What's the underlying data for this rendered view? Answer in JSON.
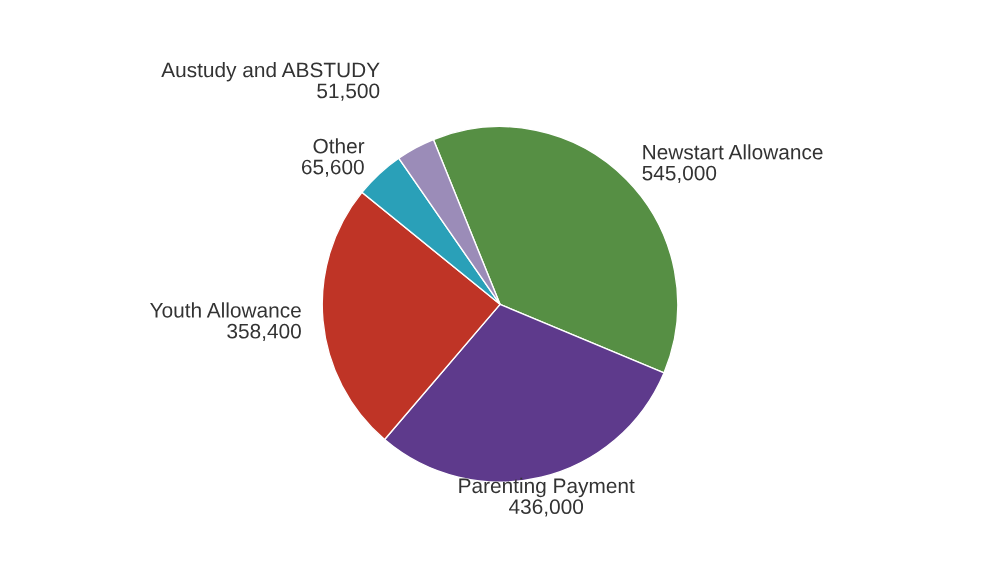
{
  "chart_data": {
    "type": "pie",
    "categories": [
      "Newstart Allowance",
      "Parenting Payment",
      "Youth Allowance",
      "Other",
      "Austudy and ABSTUDY"
    ],
    "values": [
      545000,
      436000,
      358400,
      65600,
      51500
    ],
    "colors": [
      "#568f44",
      "#5e3a8c",
      "#bf3426",
      "#2aa0b8",
      "#9b8cb8"
    ],
    "value_labels": [
      "545,000",
      "436,000",
      "358,400",
      "65,600",
      "51,500"
    ]
  }
}
